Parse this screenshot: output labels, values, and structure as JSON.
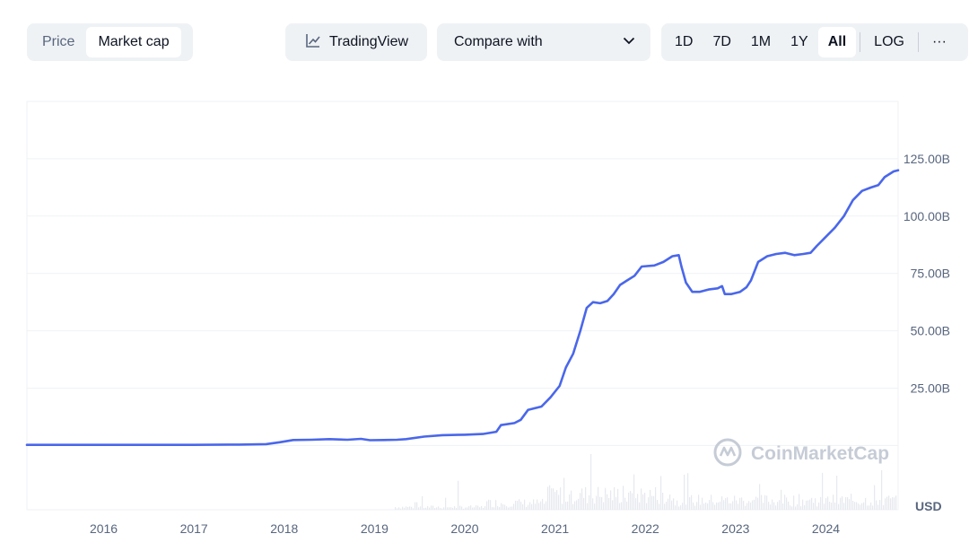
{
  "toolbar": {
    "type_tabs": [
      {
        "label": "Price",
        "active": false
      },
      {
        "label": "Market cap",
        "active": true
      }
    ],
    "tradingview_label": "TradingView",
    "tradingview_icon": "line-chart-icon",
    "compare_label": "Compare with",
    "compare_icon": "chevron-down-icon",
    "ranges": [
      "1D",
      "7D",
      "1M",
      "1Y",
      "All"
    ],
    "active_range": "All",
    "log_label": "LOG",
    "more_label": "···"
  },
  "watermark": "CoinMarketCap",
  "colors": {
    "line": "#4a67ea",
    "grid": "#eff2f5",
    "volume": "#e6e9ee",
    "text": "#58667e"
  },
  "chart_data": {
    "type": "line",
    "currency_label": "USD",
    "y_tick_labels": [
      "25.00B",
      "50.00B",
      "75.00B",
      "100.00B",
      "125.00B"
    ],
    "y_ticks": [
      25,
      50,
      75,
      100,
      125
    ],
    "ylim": [
      -28,
      150
    ],
    "y_unit": "billion USD",
    "x_tick_labels": [
      "2016",
      "2017",
      "2018",
      "2019",
      "2020",
      "2021",
      "2022",
      "2023",
      "2024"
    ],
    "x_ticks": [
      2016,
      2017,
      2018,
      2019,
      2020,
      2021,
      2022,
      2023,
      2024
    ],
    "xlim": [
      2015.15,
      2024.8
    ],
    "grid": true,
    "series": [
      {
        "points": [
          [
            2015.15,
            0.3
          ],
          [
            2016.0,
            0.3
          ],
          [
            2017.0,
            0.3
          ],
          [
            2017.5,
            0.4
          ],
          [
            2017.8,
            0.6
          ],
          [
            2017.95,
            1.4
          ],
          [
            2018.1,
            2.4
          ],
          [
            2018.3,
            2.5
          ],
          [
            2018.5,
            2.8
          ],
          [
            2018.7,
            2.5
          ],
          [
            2018.85,
            2.9
          ],
          [
            2018.95,
            2.3
          ],
          [
            2019.1,
            2.4
          ],
          [
            2019.25,
            2.5
          ],
          [
            2019.35,
            2.8
          ],
          [
            2019.55,
            3.9
          ],
          [
            2019.75,
            4.5
          ],
          [
            2020.0,
            4.7
          ],
          [
            2020.2,
            5.0
          ],
          [
            2020.35,
            6.0
          ],
          [
            2020.4,
            8.9
          ],
          [
            2020.55,
            9.8
          ],
          [
            2020.62,
            11.2
          ],
          [
            2020.7,
            15.5
          ],
          [
            2020.85,
            17.0
          ],
          [
            2020.95,
            21.0
          ],
          [
            2021.05,
            26.0
          ],
          [
            2021.12,
            34.0
          ],
          [
            2021.2,
            40.0
          ],
          [
            2021.28,
            50.0
          ],
          [
            2021.35,
            60.0
          ],
          [
            2021.42,
            62.5
          ],
          [
            2021.5,
            62.0
          ],
          [
            2021.58,
            63.0
          ],
          [
            2021.65,
            66.0
          ],
          [
            2021.72,
            70.0
          ],
          [
            2021.8,
            72.0
          ],
          [
            2021.88,
            74.0
          ],
          [
            2021.96,
            78.0
          ],
          [
            2022.1,
            78.5
          ],
          [
            2022.2,
            80.0
          ],
          [
            2022.3,
            82.5
          ],
          [
            2022.37,
            83.0
          ],
          [
            2022.4,
            78.0
          ],
          [
            2022.45,
            71.0
          ],
          [
            2022.52,
            67.0
          ],
          [
            2022.6,
            67.0
          ],
          [
            2022.7,
            68.0
          ],
          [
            2022.8,
            68.5
          ],
          [
            2022.85,
            69.5
          ],
          [
            2022.88,
            66.0
          ],
          [
            2022.95,
            66.0
          ],
          [
            2023.05,
            67.0
          ],
          [
            2023.12,
            69.0
          ],
          [
            2023.17,
            72.0
          ],
          [
            2023.25,
            80.0
          ],
          [
            2023.35,
            82.5
          ],
          [
            2023.45,
            83.5
          ],
          [
            2023.55,
            84.0
          ],
          [
            2023.65,
            83.0
          ],
          [
            2023.75,
            83.5
          ],
          [
            2023.83,
            84.0
          ],
          [
            2023.9,
            87.0
          ],
          [
            2024.0,
            91.0
          ],
          [
            2024.1,
            95.0
          ],
          [
            2024.2,
            100.0
          ],
          [
            2024.3,
            107.0
          ],
          [
            2024.4,
            111.0
          ],
          [
            2024.5,
            112.5
          ],
          [
            2024.58,
            113.5
          ],
          [
            2024.65,
            117.0
          ],
          [
            2024.75,
            119.5
          ],
          [
            2024.8,
            120.0
          ]
        ]
      }
    ]
  }
}
